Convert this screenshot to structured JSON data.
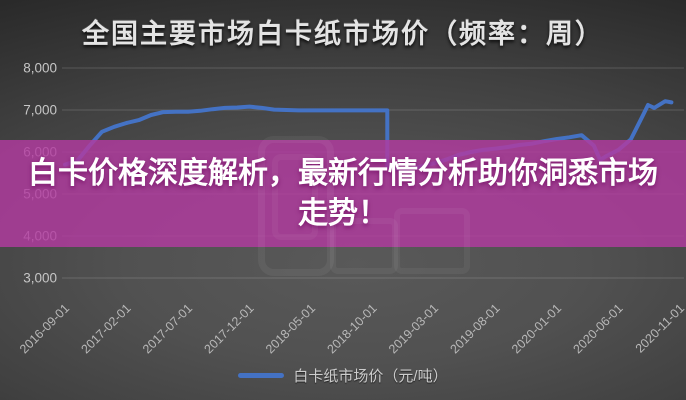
{
  "header": {
    "title": "全国主要市场白卡纸市场价（频率：周）"
  },
  "banner": {
    "text": "白卡价格深度解析，最新行情分析助你洞悉市场走势！",
    "bg_rgba": "rgba(178,58,160,0.82)",
    "text_color": "#ffffff"
  },
  "legend": {
    "label": "白卡纸市场价（元/吨）"
  },
  "colors": {
    "line": "#4472c4",
    "banner": "#b23aa0",
    "background_dark": "#1d1d1d",
    "background_light": "#595959",
    "axis_text": "#c0c0c0",
    "grid": "rgba(255,255,255,0.16)"
  },
  "chart_data": {
    "type": "line",
    "title": "全国主要市场白卡纸市场价（频率：周）",
    "frequency": "周",
    "unit": "元/吨",
    "ylim": [
      3000,
      8000
    ],
    "grid": "horizontal",
    "legend_position": "bottom",
    "y_ticks": [
      8000,
      7000,
      6000,
      5000,
      4000,
      3000
    ],
    "y_tick_labels": [
      "8,000",
      "7,000",
      "6,000",
      "5,000",
      "4,000",
      "3,000"
    ],
    "x_tick_labels": [
      "2016-09-01",
      "2017-02-01",
      "2017-07-01",
      "2017-12-01",
      "2018-05-01",
      "2018-10-01",
      "2019-03-01",
      "2019-08-01",
      "2020-01-01",
      "2020-06-01",
      "2020-11-01"
    ],
    "x_unit": "months_since_2016-09",
    "series": [
      {
        "name": "白卡纸市场价（元/吨）",
        "color": "#4472c4",
        "points": [
          [
            0,
            5700
          ],
          [
            1,
            5790
          ],
          [
            2,
            6150
          ],
          [
            3,
            6480
          ],
          [
            4,
            6600
          ],
          [
            5,
            6690
          ],
          [
            6,
            6760
          ],
          [
            7,
            6880
          ],
          [
            8,
            6950
          ],
          [
            9,
            6960
          ],
          [
            10,
            6960
          ],
          [
            11,
            6980
          ],
          [
            12,
            7020
          ],
          [
            13,
            7050
          ],
          [
            14,
            7060
          ],
          [
            15,
            7080
          ],
          [
            16,
            7050
          ],
          [
            17,
            7010
          ],
          [
            18,
            7000
          ],
          [
            19,
            6990
          ],
          [
            20,
            6990
          ],
          [
            21,
            6990
          ],
          [
            22,
            6990
          ],
          [
            23,
            6990
          ],
          [
            24,
            6990
          ],
          [
            25,
            6990
          ],
          [
            26.2,
            6990
          ],
          [
            26.2,
            5640
          ],
          [
            27,
            5590
          ],
          [
            28,
            5600
          ],
          [
            29,
            5660
          ],
          [
            30,
            5730
          ],
          [
            31,
            5820
          ],
          [
            32,
            5930
          ],
          [
            33,
            6000
          ],
          [
            34,
            6050
          ],
          [
            35,
            6080
          ],
          [
            36,
            6120
          ],
          [
            37,
            6170
          ],
          [
            38,
            6200
          ],
          [
            39,
            6260
          ],
          [
            40,
            6310
          ],
          [
            41,
            6350
          ],
          [
            42,
            6400
          ],
          [
            43,
            6150
          ],
          [
            43.5,
            5810
          ],
          [
            44,
            5900
          ],
          [
            45,
            6050
          ],
          [
            46,
            6300
          ],
          [
            47,
            6880
          ],
          [
            47.4,
            7120
          ],
          [
            47.9,
            7050
          ],
          [
            48.8,
            7210
          ],
          [
            49.3,
            7180
          ]
        ]
      }
    ]
  }
}
